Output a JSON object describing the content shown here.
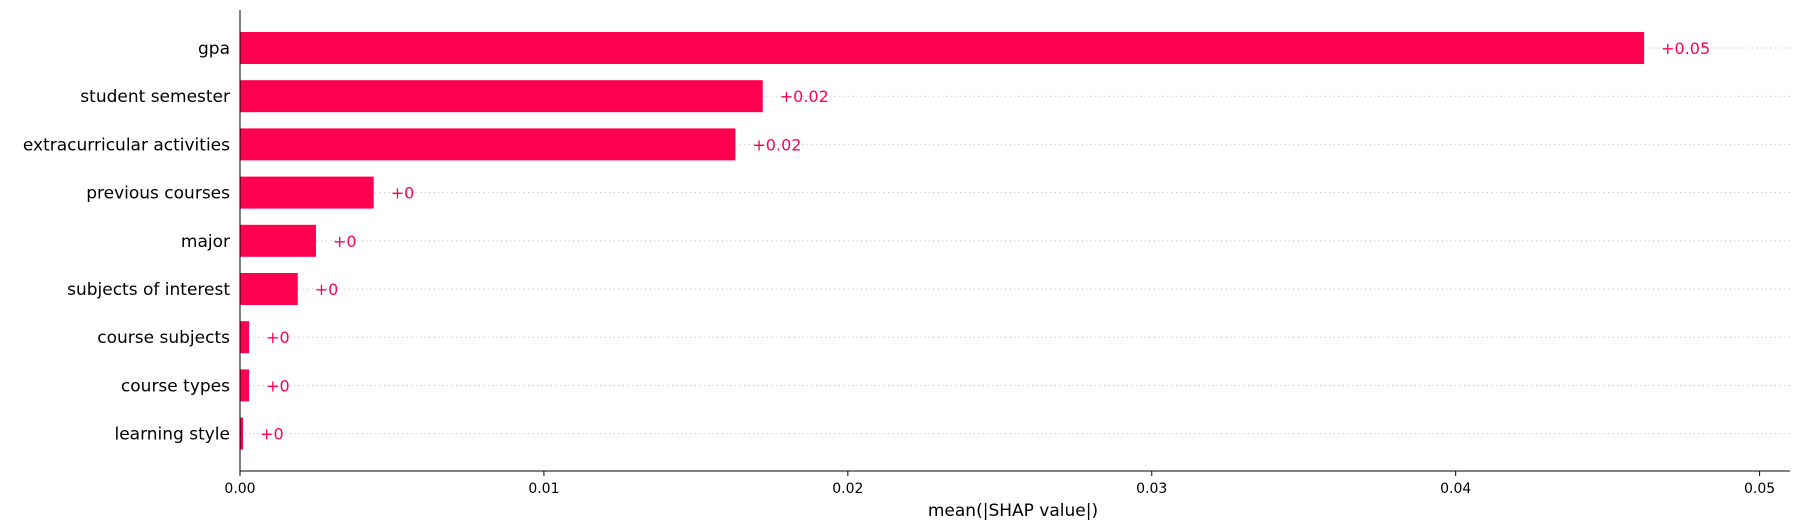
{
  "chart_data": {
    "type": "bar",
    "orientation": "horizontal",
    "categories": [
      "gpa",
      "student semester",
      "extracurricular activities",
      "previous courses",
      "major",
      "subjects of interest",
      "course subjects",
      "course types",
      "learning style"
    ],
    "values": [
      0.0462,
      0.0172,
      0.0163,
      0.0044,
      0.0025,
      0.0019,
      0.0003,
      0.0003,
      0.0001
    ],
    "value_labels": [
      "+0.05",
      "+0.02",
      "+0.02",
      "+0",
      "+0",
      "+0",
      "+0",
      "+0",
      "+0"
    ],
    "xlabel": "mean(|SHAP value|)",
    "xlim": [
      0,
      0.051
    ],
    "xticks": [
      0.0,
      0.01,
      0.02,
      0.03,
      0.04,
      0.05
    ],
    "xtick_labels": [
      "0.00",
      "0.01",
      "0.02",
      "0.03",
      "0.04",
      "0.05"
    ],
    "bar_color": "#ff0051",
    "label_color": "#ff0051",
    "gridlines": "dotted horizontal per row",
    "legend": "none"
  }
}
